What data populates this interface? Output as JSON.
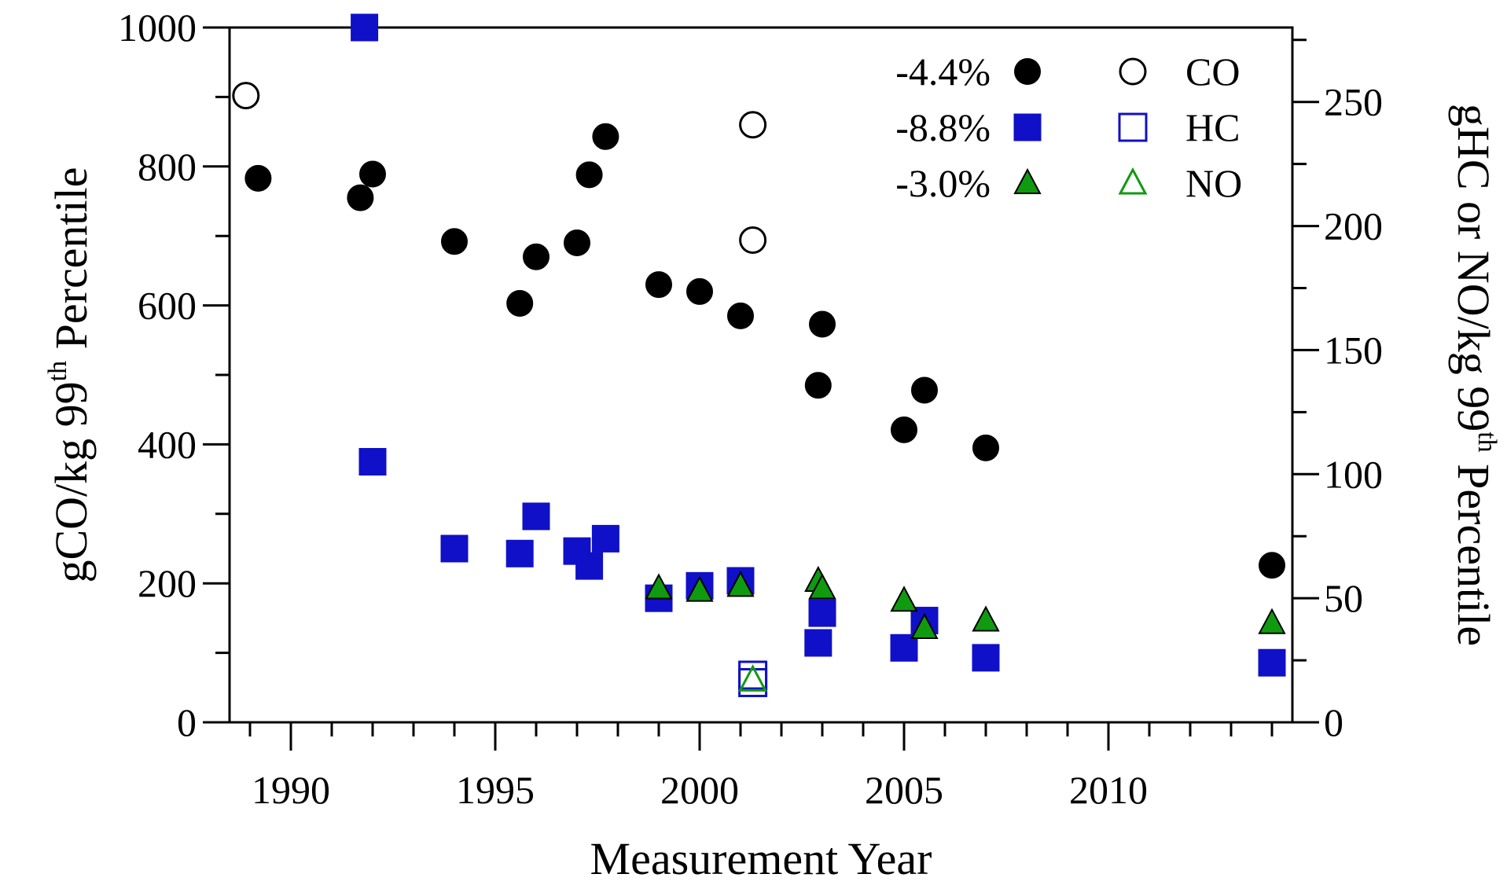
{
  "chart_data": {
    "type": "scatter",
    "xlabel": "Measurement Year",
    "ylabel_left": {
      "base": "gCO/kg 99",
      "sup": "th",
      "tail": " Percentile"
    },
    "ylabel_right": {
      "base": "gHC or NO/kg 99",
      "sup": "th",
      "tail": " Percentile"
    },
    "xlim": [
      1988.5,
      2014.5
    ],
    "xticks": [
      "1990",
      "1995",
      "2000",
      "2005",
      "2010"
    ],
    "ylim_left": [
      0,
      1000
    ],
    "yticks_left": [
      "0",
      "200",
      "400",
      "600",
      "800",
      "1000"
    ],
    "ylim_right": [
      0,
      280
    ],
    "yticks_right": [
      "0",
      "50",
      "100",
      "150",
      "200",
      "250"
    ],
    "grid": false,
    "legend_position": "top-right",
    "series": [
      {
        "name": "CO",
        "legend_value": "-4.4%",
        "axis": "left",
        "marker": "circle",
        "color": "#000000",
        "filled": [
          [
            1989.2,
            783
          ],
          [
            1991.7,
            755
          ],
          [
            1992.0,
            789
          ],
          [
            1994.0,
            692
          ],
          [
            1995.6,
            603
          ],
          [
            1996.0,
            670
          ],
          [
            1997.0,
            690
          ],
          [
            1997.3,
            788
          ],
          [
            1997.7,
            843
          ],
          [
            1999.0,
            630
          ],
          [
            2000.0,
            620
          ],
          [
            2001.0,
            585
          ],
          [
            2002.9,
            485
          ],
          [
            2003.0,
            573
          ],
          [
            2005.0,
            421
          ],
          [
            2005.5,
            478
          ],
          [
            2007.0,
            395
          ],
          [
            2014.0,
            226
          ]
        ],
        "open": [
          [
            1988.9,
            902
          ],
          [
            2001.3,
            860
          ],
          [
            2001.3,
            694
          ]
        ]
      },
      {
        "name": "HC",
        "legend_value": "-8.8%",
        "axis": "right",
        "marker": "square",
        "color": "#1010c8",
        "filled": [
          [
            1991.8,
            280
          ],
          [
            1992.0,
            105
          ],
          [
            1994.0,
            70
          ],
          [
            1995.6,
            68
          ],
          [
            1996.0,
            83
          ],
          [
            1997.0,
            69
          ],
          [
            1997.3,
            63
          ],
          [
            1997.7,
            74
          ],
          [
            1999.0,
            50
          ],
          [
            2000.0,
            55
          ],
          [
            2001.0,
            57
          ],
          [
            2002.9,
            32
          ],
          [
            2003.0,
            44
          ],
          [
            2005.0,
            30
          ],
          [
            2005.5,
            41
          ],
          [
            2007.0,
            26
          ],
          [
            2014.0,
            24
          ]
        ],
        "open": [
          [
            2001.3,
            16
          ],
          [
            2001.3,
            19
          ]
        ]
      },
      {
        "name": "NO",
        "legend_value": "-3.0%",
        "axis": "right",
        "marker": "triangle",
        "color": "#109a10",
        "filled": [
          [
            1999.0,
            54
          ],
          [
            2000.0,
            53
          ],
          [
            2001.0,
            55
          ],
          [
            2002.9,
            57
          ],
          [
            2003.0,
            54
          ],
          [
            2005.0,
            49
          ],
          [
            2005.5,
            38
          ],
          [
            2007.0,
            41
          ],
          [
            2014.0,
            40
          ]
        ],
        "open": [
          [
            2001.3,
            17
          ]
        ]
      }
    ]
  }
}
